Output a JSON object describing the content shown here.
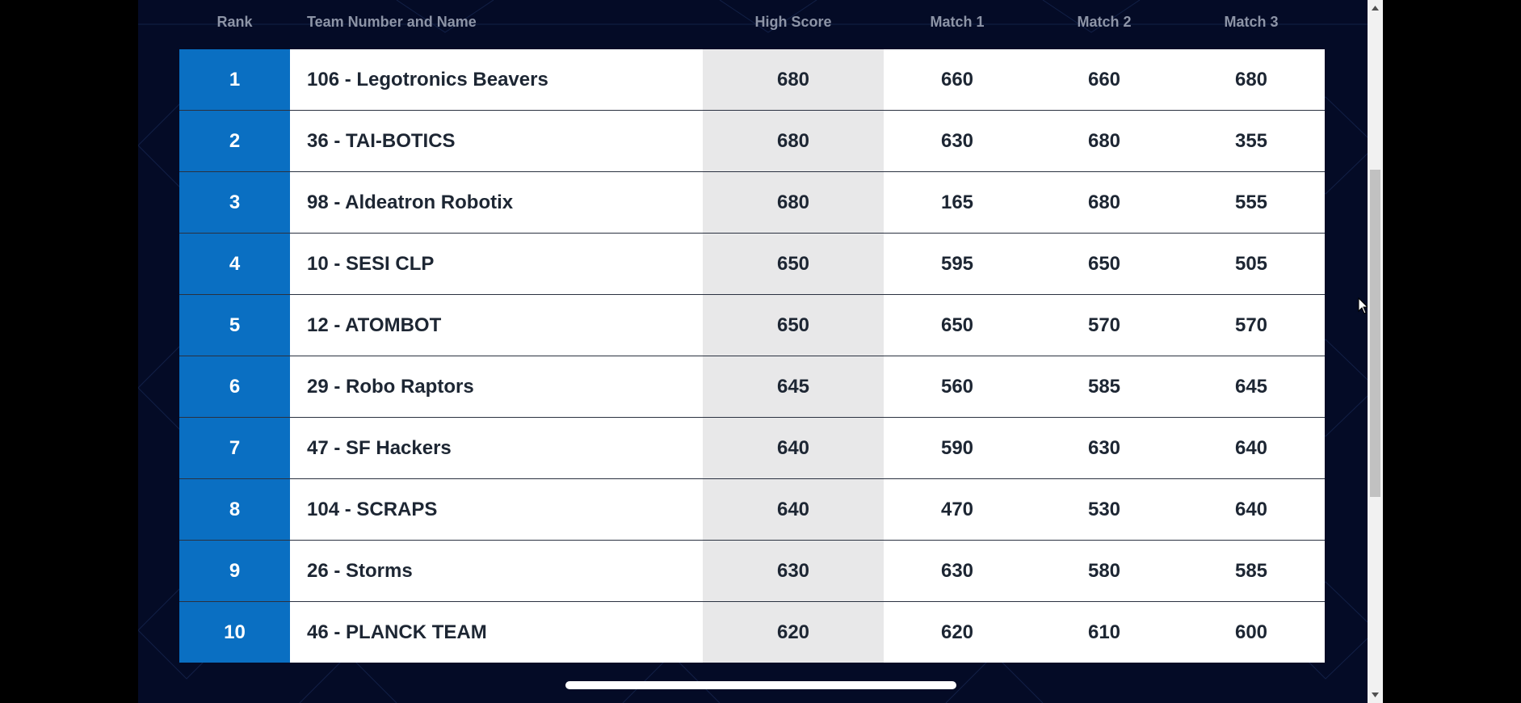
{
  "table": {
    "headers": {
      "rank": "Rank",
      "team": "Team Number and Name",
      "high_score": "High Score",
      "match1": "Match 1",
      "match2": "Match 2",
      "match3": "Match 3"
    },
    "rows": [
      {
        "rank": "1",
        "team": "106 - Legotronics Beavers",
        "high": "680",
        "m1": "660",
        "m2": "660",
        "m3": "680"
      },
      {
        "rank": "2",
        "team": "36 - TAI-BOTICS",
        "high": "680",
        "m1": "630",
        "m2": "680",
        "m3": "355"
      },
      {
        "rank": "3",
        "team": "98 - Aldeatron Robotix",
        "high": "680",
        "m1": "165",
        "m2": "680",
        "m3": "555"
      },
      {
        "rank": "4",
        "team": "10 - SESI CLP",
        "high": "650",
        "m1": "595",
        "m2": "650",
        "m3": "505"
      },
      {
        "rank": "5",
        "team": "12 - ATOMBOT",
        "high": "650",
        "m1": "650",
        "m2": "570",
        "m3": "570"
      },
      {
        "rank": "6",
        "team": "29 - Robo Raptors",
        "high": "645",
        "m1": "560",
        "m2": "585",
        "m3": "645"
      },
      {
        "rank": "7",
        "team": "47 - SF Hackers",
        "high": "640",
        "m1": "590",
        "m2": "630",
        "m3": "640"
      },
      {
        "rank": "8",
        "team": "104 - SCRAPS",
        "high": "640",
        "m1": "470",
        "m2": "530",
        "m3": "640"
      },
      {
        "rank": "9",
        "team": "26 - Storms",
        "high": "630",
        "m1": "630",
        "m2": "580",
        "m3": "585"
      },
      {
        "rank": "10",
        "team": "46 - PLANCK TEAM",
        "high": "620",
        "m1": "620",
        "m2": "610",
        "m3": "600"
      }
    ]
  },
  "colors": {
    "background": "#040b26",
    "rank_cell": "#0a6fc2",
    "high_score_cell": "#e8e8e9",
    "header_text": "#8d94a6"
  },
  "icons": {
    "scroll_up": "caret-up-icon",
    "scroll_down": "caret-down-icon",
    "cursor": "mouse-pointer-icon"
  }
}
